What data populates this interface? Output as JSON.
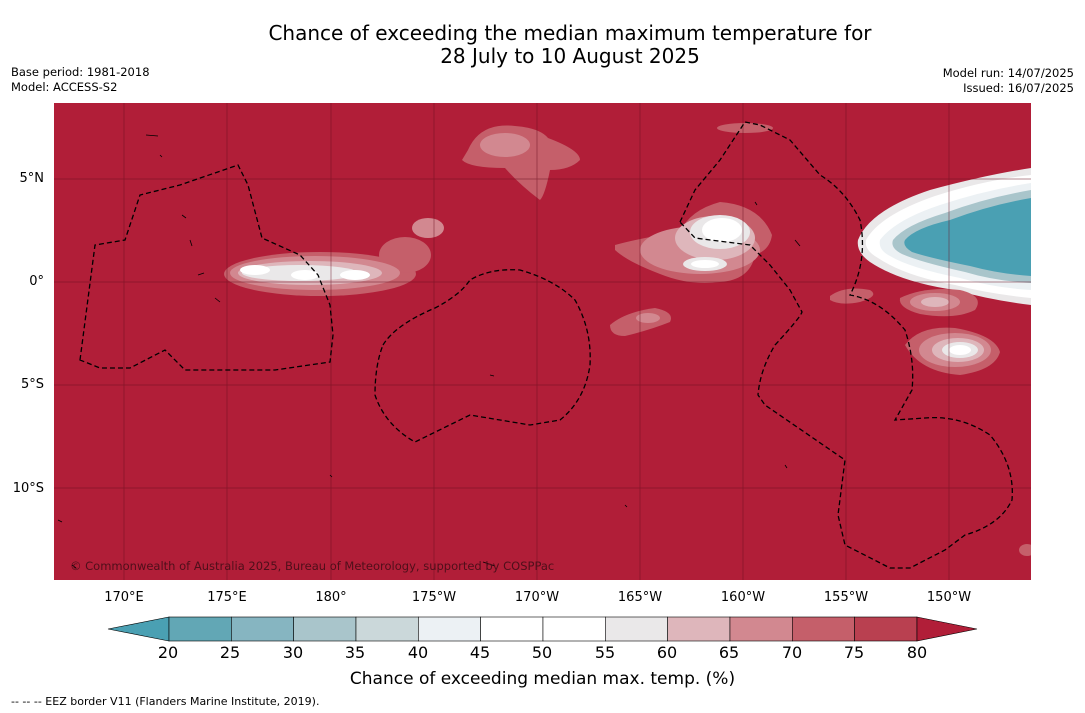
{
  "header": {
    "title_line1": "Chance of exceeding the median maximum temperature for",
    "title_line2": "28 July to 10 August 2025",
    "base_period": "Base period: 1981-2018",
    "model": "Model: ACCESS-S2",
    "model_run": "Model run: 14/07/2025",
    "issued": "Issued: 16/07/2025"
  },
  "map": {
    "background_color": "#b11e38",
    "copyright": "© Commonwealth of Australia 2025, Bureau of Meteorology, supported by COSPPac",
    "lat_labels": [
      "5°N",
      "0°",
      "5°S",
      "10°S"
    ],
    "lon_labels": [
      "170°E",
      "175°E",
      "180°",
      "175°W",
      "170°W",
      "165°W",
      "160°W",
      "155°W",
      "150°W"
    ]
  },
  "colorbar": {
    "ticks": [
      "20",
      "25",
      "30",
      "35",
      "40",
      "45",
      "50",
      "55",
      "60",
      "65",
      "70",
      "75",
      "80"
    ],
    "colors": [
      "#62a7b5",
      "#86b5c1",
      "#a9c5cb",
      "#cbd8da",
      "#ecf1f4",
      "#ffffff",
      "#ffffff",
      "#eae8e9",
      "#deb6bb",
      "#d28890",
      "#c55f6a",
      "#b94050"
    ],
    "low_extend_color": "#4aa0b3",
    "high_extend_color": "#b11e38",
    "title": "Chance of exceeding median max. temp. (%)"
  },
  "footer": {
    "legend": "--  --  -- EEZ border V11 (Flanders Marine Institute, 2019)."
  }
}
